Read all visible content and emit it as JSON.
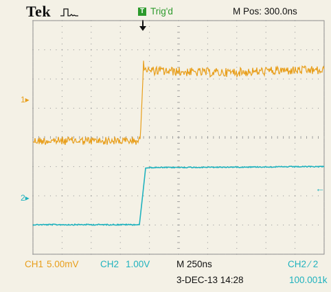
{
  "header": {
    "brand": "Tek",
    "acquisition_icon": "pulse-waveform-icon",
    "trigger_icon_letter": "T",
    "trigger_status": "Trig'd",
    "horizontal_position": "M Pos: 300.0ns"
  },
  "markers": {
    "ch1": "1▸",
    "ch2": "2▸",
    "trigger_level": "←"
  },
  "footer": {
    "ch1_label": "CH1",
    "ch1_scale": "5.00mV",
    "ch2_label": "CH2",
    "ch2_scale": "1.00V",
    "timebase": "M 250ns",
    "trigger_source": "CH2 ⁄ 2",
    "date_time": "3-DEC-13 14:28",
    "frequency": "100.001k"
  },
  "colors": {
    "ch1": "#e89e1a",
    "ch2": "#1fb2be",
    "trigger": "#2c9a2c",
    "background": "#f4f1e6",
    "graticule": "#9a9a9a"
  }
}
